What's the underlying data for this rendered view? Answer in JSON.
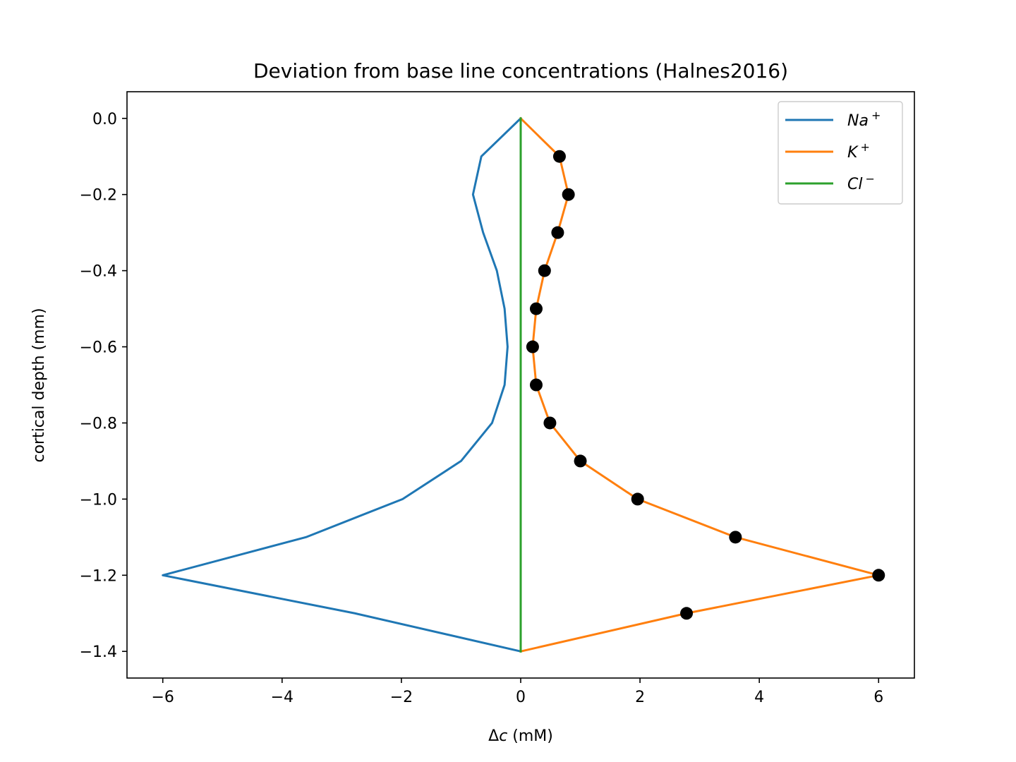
{
  "chart_data": {
    "type": "line",
    "title": "Deviation from base line concentrations (Halnes2016)",
    "xlabel_symbol": "Δ",
    "xlabel_var": "c",
    "xlabel_unit": " (mM)",
    "ylabel": "cortical depth (mm)",
    "xlim": [
      -6.6,
      6.6
    ],
    "ylim": [
      -1.47,
      0.07
    ],
    "xticks": [
      -6,
      -4,
      -2,
      0,
      2,
      4,
      6
    ],
    "xtick_labels": [
      "−6",
      "−4",
      "−2",
      "0",
      "2",
      "4",
      "6"
    ],
    "yticks": [
      0.0,
      -0.2,
      -0.4,
      -0.6,
      -0.8,
      -1.0,
      -1.2,
      -1.4
    ],
    "ytick_labels": [
      "0.0",
      "−0.2",
      "−0.4",
      "−0.6",
      "−0.8",
      "−1.0",
      "−1.2",
      "−1.4"
    ],
    "legend_position": "top-right",
    "series": [
      {
        "name_base": "Na",
        "name_sup": "+",
        "color": "#1f77b4",
        "x": [
          0,
          -0.66,
          -0.8,
          -0.63,
          -0.4,
          -0.27,
          -0.22,
          -0.27,
          -0.48,
          -1.0,
          -1.98,
          -3.6,
          -6.0,
          -2.78,
          0
        ],
        "y": [
          0,
          -0.1,
          -0.2,
          -0.3,
          -0.4,
          -0.5,
          -0.6,
          -0.7,
          -0.8,
          -0.9,
          -1.0,
          -1.1,
          -1.2,
          -1.3,
          -1.4
        ]
      },
      {
        "name_base": "K",
        "name_sup": "+",
        "color": "#ff7f0e",
        "x": [
          0,
          0.65,
          0.8,
          0.62,
          0.4,
          0.26,
          0.2,
          0.26,
          0.49,
          1.0,
          1.96,
          3.6,
          6.0,
          2.78,
          0
        ],
        "y": [
          0,
          -0.1,
          -0.2,
          -0.3,
          -0.4,
          -0.5,
          -0.6,
          -0.7,
          -0.8,
          -0.9,
          -1.0,
          -1.1,
          -1.2,
          -1.3,
          -1.4
        ]
      },
      {
        "name_base": "Cl",
        "name_sup": "−",
        "color": "#2ca02c",
        "x": [
          0,
          0
        ],
        "y": [
          0,
          -1.4
        ]
      }
    ],
    "markers": {
      "color": "#000000",
      "x": [
        0.65,
        0.8,
        0.62,
        0.4,
        0.26,
        0.2,
        0.26,
        0.49,
        1.0,
        1.96,
        3.6,
        6.0,
        2.78
      ],
      "y": [
        -0.1,
        -0.2,
        -0.3,
        -0.4,
        -0.5,
        -0.6,
        -0.7,
        -0.8,
        -0.9,
        -1.0,
        -1.1,
        -1.2,
        -1.3
      ]
    }
  }
}
